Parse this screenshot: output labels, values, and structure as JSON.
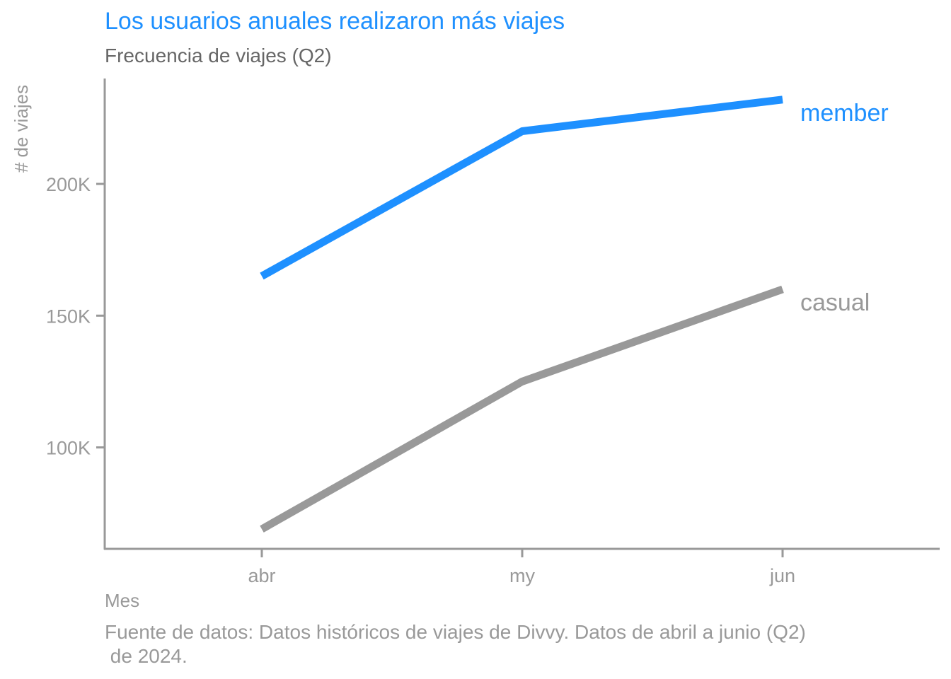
{
  "chart_data": {
    "type": "line",
    "title": "Los usuarios anuales realizaron más viajes",
    "subtitle": "Frecuencia de viajes (Q2)",
    "xlabel": "Mes",
    "ylabel": "# de viajes",
    "caption_lines": [
      "Fuente de datos: Datos históricos de viajes de Divvy. Datos de abril a junio (Q2)",
      " de 2024."
    ],
    "categories": [
      "abr",
      "my",
      "jun"
    ],
    "y_ticks": [
      {
        "value": 100000,
        "label": "100K"
      },
      {
        "value": 150000,
        "label": "150K"
      },
      {
        "value": 200000,
        "label": "200K"
      }
    ],
    "ylim": [
      61500,
      240000
    ],
    "grid": false,
    "legend": "direct labels at line ends",
    "series": [
      {
        "name": "member",
        "values": [
          165000,
          220000,
          232000
        ],
        "color": "#1E90FF"
      },
      {
        "name": "casual",
        "values": [
          69000,
          125000,
          160000
        ],
        "color": "#999999"
      }
    ],
    "colors": {
      "accent": "#1E90FF",
      "axis": "#999999",
      "subtitle": "#666666"
    }
  }
}
